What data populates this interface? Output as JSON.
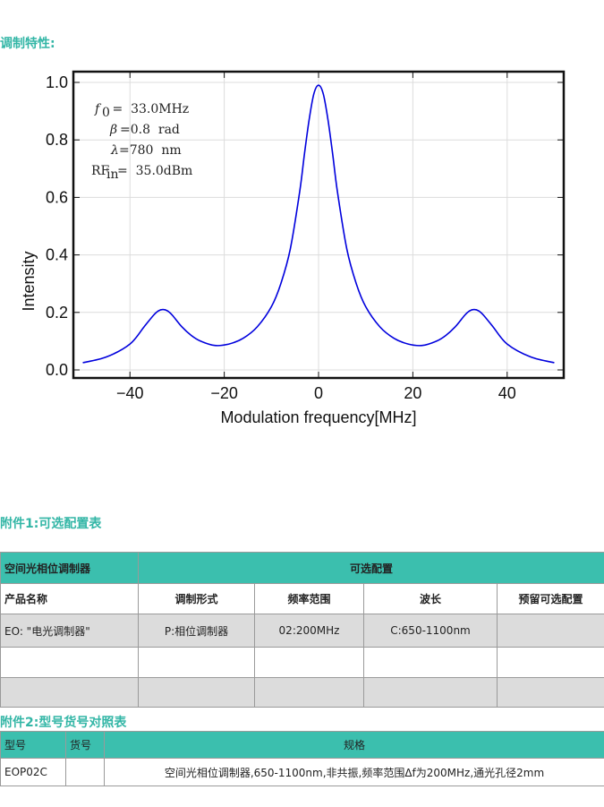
{
  "section1": {
    "title": "调制特性:"
  },
  "chart_data": {
    "type": "line",
    "title": "",
    "xlabel": "Modulation frequency[MHz]",
    "ylabel": "Intensity",
    "xlim": [
      -52,
      52
    ],
    "ylim": [
      0,
      1.0
    ],
    "xticks": [
      "−40",
      "−20",
      "0",
      "20",
      "40"
    ],
    "xtick_values": [
      -40,
      -20,
      0,
      20,
      40
    ],
    "yticks": [
      "0.0",
      "0.2",
      "0.4",
      "0.6",
      "0.8",
      "1.0"
    ],
    "ytick_values": [
      0,
      0.2,
      0.4,
      0.6,
      0.8,
      1.0
    ],
    "grid": true,
    "color": "#0000dd",
    "series": [
      {
        "x": [
          -50,
          -45,
          -40,
          -37,
          -35,
          -34,
          -33,
          -32,
          -31,
          -29,
          -27,
          -25,
          -22,
          -19,
          -16,
          -13,
          -10,
          -8,
          -6,
          -4,
          -3,
          -2,
          -1,
          0,
          1,
          2,
          3,
          4,
          6,
          8,
          10,
          13,
          16,
          19,
          22,
          25,
          27,
          29,
          31,
          32,
          33,
          34,
          35,
          37,
          40,
          45,
          50
        ],
        "y": [
          0.025,
          0.045,
          0.09,
          0.15,
          0.19,
          0.205,
          0.21,
          0.205,
          0.19,
          0.15,
          0.12,
          0.1,
          0.085,
          0.09,
          0.11,
          0.15,
          0.22,
          0.3,
          0.42,
          0.62,
          0.75,
          0.87,
          0.96,
          0.99,
          0.96,
          0.87,
          0.75,
          0.62,
          0.42,
          0.3,
          0.22,
          0.15,
          0.11,
          0.09,
          0.085,
          0.1,
          0.12,
          0.15,
          0.19,
          0.205,
          0.21,
          0.205,
          0.19,
          0.15,
          0.09,
          0.045,
          0.025
        ]
      }
    ],
    "annotations": [
      {
        "label": "f",
        "sub": "0",
        "value": " =  33.0MHz"
      },
      {
        "label": "β",
        "sub": "",
        "value": "=0.8  rad"
      },
      {
        "label": "λ",
        "sub": "",
        "value": "=780  nm"
      },
      {
        "label": "RF",
        "sub": "in",
        "value": "=  35.0dBm"
      }
    ]
  },
  "section2": {
    "title": "附件1:可选配置表"
  },
  "table1": {
    "header": [
      "空间光相位调制器",
      "可选配置"
    ],
    "subheader": [
      "产品名称",
      "调制形式",
      "频率范围",
      "波长",
      "预留可选配置"
    ],
    "rows": [
      [
        "EO: \"电光调制器\"",
        "P:相位调制器",
        "02:200MHz",
        "C:650-1100nm",
        ""
      ],
      [
        "",
        "",
        "",
        "",
        ""
      ],
      [
        "",
        "",
        "",
        "",
        ""
      ]
    ]
  },
  "section3": {
    "title": "附件2:型号货号对照表"
  },
  "table2": {
    "header": [
      "型号",
      "货号",
      "规格"
    ],
    "rows": [
      [
        "EOP02C",
        "",
        "空间光相位调制器,650-1100nm,非共振,频率范围Δf为200MHz,通光孔径2mm"
      ]
    ]
  }
}
